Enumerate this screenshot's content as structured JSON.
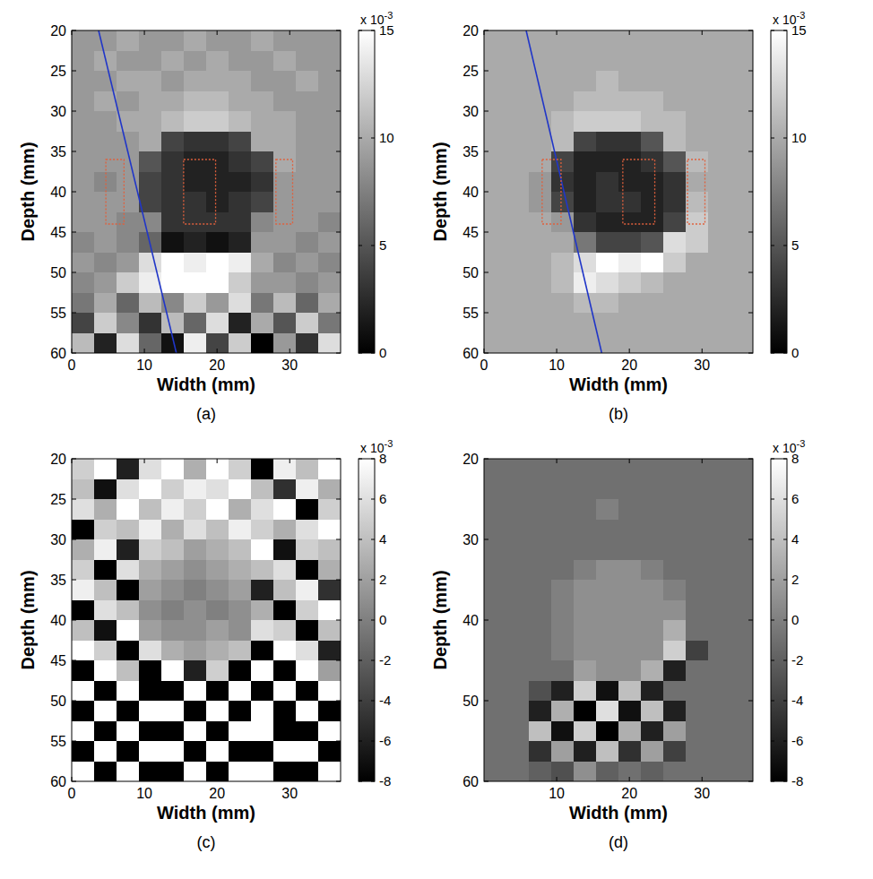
{
  "chart_data": [
    {
      "type": "heatmap",
      "panel_label": "(a)",
      "x_label": "Width (mm)",
      "y_label": "Depth (mm)",
      "xlim": [
        0,
        37
      ],
      "ylim": [
        20,
        60
      ],
      "xticks": [
        0,
        10,
        20,
        30
      ],
      "yticks": [
        20,
        25,
        30,
        35,
        40,
        45,
        50,
        55,
        60
      ],
      "color": "gray",
      "cells": [
        [
          9,
          9,
          10,
          9,
          9,
          10,
          9,
          9,
          10,
          9,
          9,
          9
        ],
        [
          9,
          10,
          9,
          9,
          10,
          9,
          10,
          9,
          9,
          10,
          9,
          9
        ],
        [
          9,
          9,
          10,
          10,
          9,
          10,
          10,
          10,
          9,
          9,
          10,
          9
        ],
        [
          9,
          10,
          9,
          10,
          10,
          11,
          11,
          10,
          10,
          9,
          9,
          9
        ],
        [
          9,
          9,
          10,
          10,
          11,
          12,
          12,
          11,
          10,
          10,
          9,
          9
        ],
        [
          9,
          9,
          9,
          10,
          4,
          3,
          3,
          4,
          10,
          10,
          9,
          9
        ],
        [
          9,
          9,
          9,
          5,
          3,
          2,
          2,
          3,
          4,
          10,
          9,
          9
        ],
        [
          9,
          8,
          9,
          4,
          3,
          2,
          2,
          2,
          3,
          9,
          9,
          9
        ],
        [
          9,
          9,
          9,
          4,
          3,
          3,
          2,
          3,
          4,
          9,
          9,
          9
        ],
        [
          9,
          9,
          8,
          8,
          3,
          3,
          3,
          3,
          8,
          9,
          9,
          8
        ],
        [
          8,
          9,
          8,
          6,
          1,
          2,
          1,
          2,
          9,
          9,
          8,
          9
        ],
        [
          9,
          8,
          9,
          13,
          15,
          14,
          15,
          14,
          10,
          8,
          9,
          8
        ],
        [
          8,
          9,
          12,
          14,
          15,
          15,
          15,
          12,
          9,
          9,
          8,
          9
        ],
        [
          7,
          10,
          6,
          11,
          8,
          12,
          9,
          13,
          7,
          11,
          6,
          10
        ],
        [
          4,
          12,
          8,
          3,
          11,
          6,
          13,
          2,
          10,
          5,
          12,
          7
        ],
        [
          11,
          2,
          13,
          6,
          1,
          14,
          4,
          12,
          0,
          9,
          3,
          13
        ]
      ],
      "colorbar": {
        "range": [
          0,
          15
        ],
        "ticks": [
          0,
          5,
          10,
          15
        ],
        "label": "x 10",
        "label_exponent": "-3"
      },
      "overlay_line": {
        "x": [
          3.7,
          14.4
        ],
        "y": [
          20,
          60
        ],
        "color": "#2036c8"
      },
      "regions": {
        "color": "#e0603c",
        "boxes": [
          {
            "x": [
              4.7,
              7.2
            ],
            "y": [
              36,
              44
            ]
          },
          {
            "x": [
              15.4,
              19.8
            ],
            "y": [
              36,
              44
            ]
          },
          {
            "x": [
              28.1,
              30.4
            ],
            "y": [
              36,
              44
            ]
          }
        ]
      }
    },
    {
      "type": "heatmap",
      "panel_label": "(b)",
      "x_label": "Width (mm)",
      "y_label": "Depth (mm)",
      "xlim": [
        0,
        37
      ],
      "ylim": [
        20,
        60
      ],
      "xticks": [
        0,
        10,
        20,
        30
      ],
      "yticks": [
        20,
        25,
        30,
        35,
        40,
        45,
        50,
        55,
        60
      ],
      "color": "gray",
      "cells": [
        [
          10,
          10,
          10,
          10,
          10,
          10,
          10,
          10,
          10,
          10,
          10,
          10
        ],
        [
          10,
          10,
          10,
          10,
          10,
          10,
          10,
          10,
          10,
          10,
          10,
          10
        ],
        [
          10,
          10,
          10,
          10,
          10,
          11,
          10,
          10,
          10,
          10,
          10,
          10
        ],
        [
          10,
          10,
          10,
          10,
          11,
          11,
          11,
          11,
          10,
          10,
          10,
          10
        ],
        [
          10,
          10,
          10,
          11,
          12,
          12,
          12,
          11,
          11,
          10,
          10,
          10
        ],
        [
          10,
          10,
          10,
          11,
          4,
          3,
          3,
          5,
          11,
          10,
          10,
          10
        ],
        [
          10,
          10,
          10,
          4,
          2,
          2,
          2,
          3,
          5,
          11,
          10,
          10
        ],
        [
          10,
          10,
          9,
          3,
          2,
          3,
          2,
          2,
          3,
          10,
          10,
          10
        ],
        [
          10,
          10,
          9,
          4,
          2,
          3,
          3,
          2,
          3,
          11,
          10,
          10
        ],
        [
          10,
          10,
          10,
          9,
          3,
          2,
          2,
          2,
          4,
          12,
          10,
          10
        ],
        [
          10,
          10,
          10,
          10,
          7,
          4,
          4,
          5,
          13,
          12,
          10,
          10
        ],
        [
          10,
          10,
          10,
          11,
          13,
          15,
          14,
          15,
          12,
          10,
          10,
          10
        ],
        [
          10,
          10,
          10,
          11,
          14,
          13,
          12,
          11,
          10,
          10,
          10,
          10
        ],
        [
          10,
          10,
          10,
          10,
          11,
          11,
          10,
          10,
          10,
          10,
          10,
          10
        ],
        [
          10,
          10,
          10,
          10,
          10,
          10,
          10,
          10,
          10,
          10,
          10,
          10
        ],
        [
          10,
          10,
          10,
          10,
          10,
          10,
          10,
          10,
          10,
          10,
          10,
          10
        ]
      ],
      "colorbar": {
        "range": [
          0,
          15
        ],
        "ticks": [
          0,
          5,
          10,
          15
        ],
        "label": "x 10",
        "label_exponent": "-3"
      },
      "overlay_line": {
        "x": [
          5.8,
          16.2
        ],
        "y": [
          20,
          60
        ],
        "color": "#2036c8"
      },
      "regions": {
        "color": "#e0603c",
        "boxes": [
          {
            "x": [
              8.0,
              10.6
            ],
            "y": [
              36,
              44
            ]
          },
          {
            "x": [
              19.1,
              23.5
            ],
            "y": [
              36,
              44
            ]
          },
          {
            "x": [
              28.0,
              30.4
            ],
            "y": [
              36,
              44
            ]
          }
        ]
      }
    },
    {
      "type": "heatmap",
      "panel_label": "(c)",
      "x_label": "Width (mm)",
      "y_label": "Depth (mm)",
      "xlim": [
        0,
        37
      ],
      "ylim": [
        20,
        60
      ],
      "xticks": [
        0,
        10,
        20,
        30
      ],
      "yticks": [
        20,
        25,
        30,
        35,
        40,
        45,
        50,
        55,
        60
      ],
      "color": "gray",
      "cells": [
        [
          5,
          8,
          -6,
          6,
          8,
          3,
          8,
          5,
          -8,
          7,
          4,
          8
        ],
        [
          4,
          -7,
          6,
          8,
          5,
          7,
          6,
          8,
          4,
          -5,
          7,
          3
        ],
        [
          6,
          3,
          8,
          4,
          7,
          5,
          8,
          3,
          6,
          8,
          -8,
          5
        ],
        [
          -8,
          5,
          4,
          7,
          3,
          6,
          4,
          7,
          5,
          3,
          6,
          8
        ],
        [
          3,
          7,
          -6,
          5,
          4,
          2,
          3,
          4,
          8,
          -7,
          5,
          4
        ],
        [
          5,
          -8,
          6,
          3,
          2,
          1,
          2,
          3,
          4,
          6,
          -8,
          3
        ],
        [
          7,
          4,
          -8,
          2,
          1,
          0,
          1,
          2,
          -6,
          4,
          7,
          -5
        ],
        [
          -8,
          6,
          4,
          1,
          0,
          1,
          0,
          1,
          3,
          -8,
          5,
          8
        ],
        [
          4,
          -7,
          8,
          2,
          1,
          1,
          2,
          1,
          6,
          5,
          -8,
          4
        ],
        [
          8,
          5,
          -8,
          6,
          3,
          2,
          3,
          4,
          -8,
          8,
          6,
          -6
        ],
        [
          -8,
          8,
          4,
          -8,
          8,
          -6,
          5,
          -8,
          8,
          -8,
          8,
          2
        ],
        [
          8,
          -8,
          8,
          -8,
          -8,
          8,
          -8,
          8,
          -8,
          8,
          -8,
          8
        ],
        [
          -8,
          8,
          -8,
          8,
          8,
          -8,
          8,
          -8,
          8,
          -8,
          8,
          -8
        ],
        [
          8,
          -8,
          8,
          -8,
          -8,
          8,
          -8,
          8,
          8,
          -8,
          -8,
          8
        ],
        [
          -8,
          8,
          -8,
          8,
          8,
          -8,
          8,
          -8,
          -8,
          8,
          8,
          -8
        ],
        [
          8,
          -8,
          8,
          -8,
          -8,
          8,
          -8,
          8,
          8,
          -8,
          -8,
          8
        ]
      ],
      "colorbar": {
        "range": [
          -8,
          8
        ],
        "ticks": [
          -8,
          -6,
          -4,
          -2,
          0,
          2,
          4,
          6,
          8
        ],
        "label": "x 10",
        "label_exponent": "-3"
      }
    },
    {
      "type": "heatmap",
      "panel_label": "(d)",
      "x_label": "Width (mm)",
      "y_label": "Depth (mm)",
      "xlim": [
        0,
        37
      ],
      "ylim": [
        20,
        60
      ],
      "xticks": [
        10,
        20,
        30
      ],
      "yticks": [
        20,
        30,
        40,
        50,
        60
      ],
      "color": "gray",
      "cells": [
        [
          -1,
          -1,
          -1,
          -1,
          -1,
          -1,
          -1,
          -1,
          -1,
          -1,
          -1,
          -1
        ],
        [
          -1,
          -1,
          -1,
          -1,
          -1,
          -1,
          -1,
          -1,
          -1,
          -1,
          -1,
          -1
        ],
        [
          -1,
          -1,
          -1,
          -1,
          -1,
          0,
          -1,
          -1,
          -1,
          -1,
          -1,
          -1
        ],
        [
          -1,
          -1,
          -1,
          -1,
          -1,
          -1,
          -1,
          -1,
          -1,
          -1,
          -1,
          -1
        ],
        [
          -1,
          -1,
          -1,
          -1,
          -1,
          -1,
          -1,
          -1,
          -1,
          -1,
          -1,
          -1
        ],
        [
          -1,
          -1,
          -1,
          -1,
          0,
          1,
          1,
          0,
          -1,
          -1,
          -1,
          -1
        ],
        [
          -1,
          -1,
          -1,
          0,
          1,
          1,
          1,
          1,
          0,
          -1,
          -1,
          -1
        ],
        [
          -1,
          -1,
          -1,
          0,
          1,
          1,
          1,
          1,
          1,
          -1,
          -1,
          -1
        ],
        [
          -1,
          -1,
          -1,
          0,
          1,
          1,
          1,
          1,
          3,
          -1,
          -1,
          -1
        ],
        [
          -1,
          -1,
          -1,
          0,
          1,
          1,
          1,
          1,
          5,
          -4,
          -1,
          -1
        ],
        [
          -1,
          -1,
          -1,
          -1,
          2,
          1,
          1,
          3,
          -6,
          -1,
          -1,
          -1
        ],
        [
          -1,
          -1,
          -3,
          -6,
          5,
          -7,
          4,
          -6,
          -1,
          -1,
          -1,
          -1
        ],
        [
          -1,
          -1,
          -6,
          3,
          -8,
          6,
          -7,
          4,
          -6,
          -1,
          -1,
          -1
        ],
        [
          -1,
          -1,
          4,
          -7,
          5,
          -8,
          3,
          -6,
          2,
          -1,
          -1,
          -1
        ],
        [
          -1,
          -1,
          -5,
          2,
          -6,
          4,
          -5,
          2,
          -4,
          -1,
          -1,
          -1
        ],
        [
          -1,
          -1,
          -2,
          -3,
          1,
          -2,
          -1,
          -2,
          -1,
          -1,
          -1,
          -1
        ]
      ],
      "colorbar": {
        "range": [
          -8,
          8
        ],
        "ticks": [
          -8,
          -6,
          -4,
          -2,
          0,
          2,
          4,
          6,
          8
        ],
        "label": "x 10",
        "label_exponent": "-3"
      }
    }
  ]
}
